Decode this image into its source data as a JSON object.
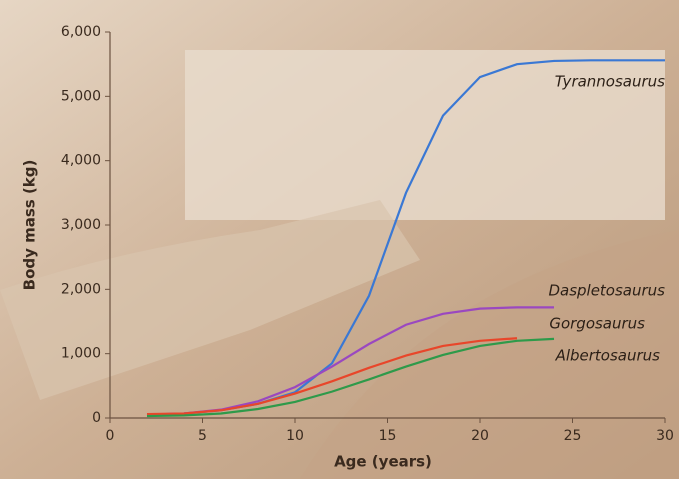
{
  "chart_data": {
    "type": "line",
    "x_label": "Age (years)",
    "y_label": "Body mass (kg)",
    "x": [
      2,
      4,
      6,
      8,
      10,
      12,
      14,
      16,
      18,
      20,
      22,
      24,
      26,
      28,
      30
    ],
    "series": [
      {
        "name": "Tyrannosaurus",
        "color": "#3a78d4",
        "values": [
          50,
          70,
          120,
          220,
          400,
          850,
          1900,
          3500,
          4700,
          5300,
          5500,
          5550,
          5560,
          5560,
          5560
        ]
      },
      {
        "name": "Daspletosaurus",
        "color": "#9a48c0",
        "values": [
          50,
          70,
          130,
          260,
          480,
          800,
          1150,
          1450,
          1620,
          1700,
          1720,
          1720,
          null,
          null,
          null
        ]
      },
      {
        "name": "Gorgosaurus",
        "color": "#e8462a",
        "values": [
          60,
          70,
          120,
          220,
          380,
          570,
          780,
          970,
          1120,
          1200,
          1240,
          null,
          null,
          null,
          null
        ]
      },
      {
        "name": "Albertosaurus",
        "color": "#2e9a4a",
        "values": [
          30,
          40,
          70,
          140,
          250,
          410,
          600,
          800,
          980,
          1120,
          1200,
          1230,
          null,
          null,
          null
        ]
      }
    ],
    "xlim": [
      0,
      30
    ],
    "xticks": [
      0,
      5,
      10,
      15,
      20,
      25,
      30
    ],
    "ylim": [
      0,
      6000
    ],
    "yticks": [
      0,
      {
        "value": 1000,
        "label": "1,000"
      },
      {
        "value": 2000,
        "label": "2,000"
      },
      {
        "value": 3000,
        "label": "3,000"
      },
      {
        "value": 4000,
        "label": "4,000"
      },
      {
        "value": 5000,
        "label": "5,000"
      },
      {
        "value": 6000,
        "label": "6,000"
      }
    ]
  }
}
